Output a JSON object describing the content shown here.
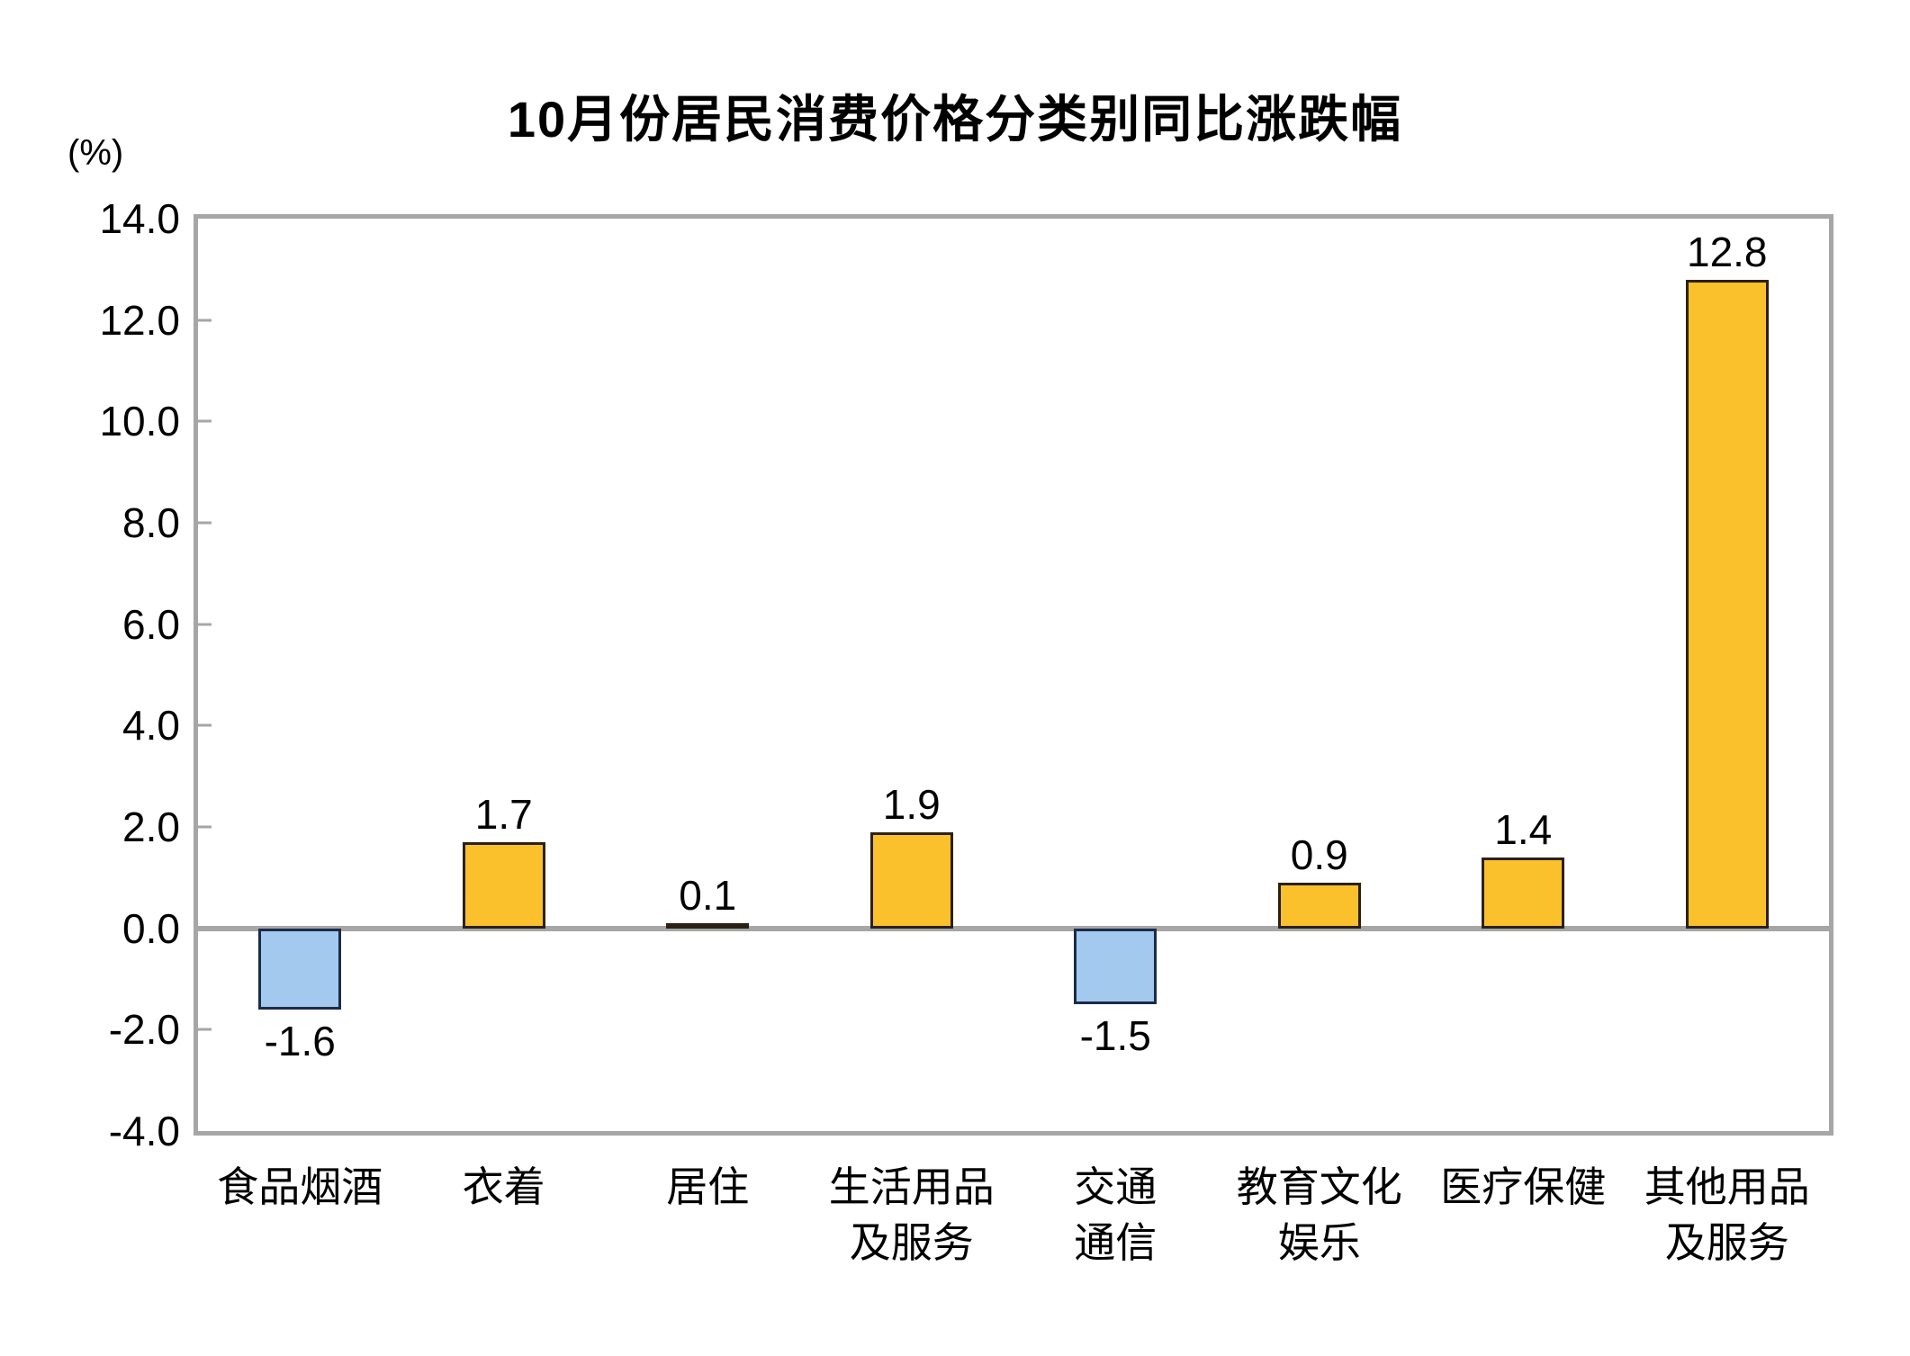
{
  "chart_data": {
    "type": "bar",
    "title": "10月份居民消费价格分类别同比涨跌幅",
    "unit_label": "(%)",
    "categories": [
      "食品烟酒",
      "衣着",
      "居住",
      "生活用品\n及服务",
      "交通\n通信",
      "教育文化\n娱乐",
      "医疗保健",
      "其他用品\n及服务"
    ],
    "values": [
      -1.6,
      1.7,
      0.1,
      1.9,
      -1.5,
      0.9,
      1.4,
      12.8
    ],
    "data_labels": [
      "-1.6",
      "1.7",
      "0.1",
      "1.9",
      "-1.5",
      "0.9",
      "1.4",
      "12.8"
    ],
    "ylabel": "(%)",
    "xlabel": "",
    "ylim": [
      -4.0,
      14.0
    ],
    "ytick_step": 2.0,
    "ytick_labels": [
      "14.0",
      "12.0",
      "10.0",
      "8.0",
      "6.0",
      "4.0",
      "2.0",
      "0.0",
      "-2.0",
      "-4.0"
    ],
    "grid": false,
    "legend_position": "none",
    "colors": {
      "positive_fill": "#FBC12D",
      "positive_border": "#2B2013",
      "negative_fill": "#A3C9EF",
      "negative_border": "#1C2B4A",
      "frame": "#A6A6A6",
      "zero_line": "#A6A6A6",
      "text": "#000000"
    }
  }
}
